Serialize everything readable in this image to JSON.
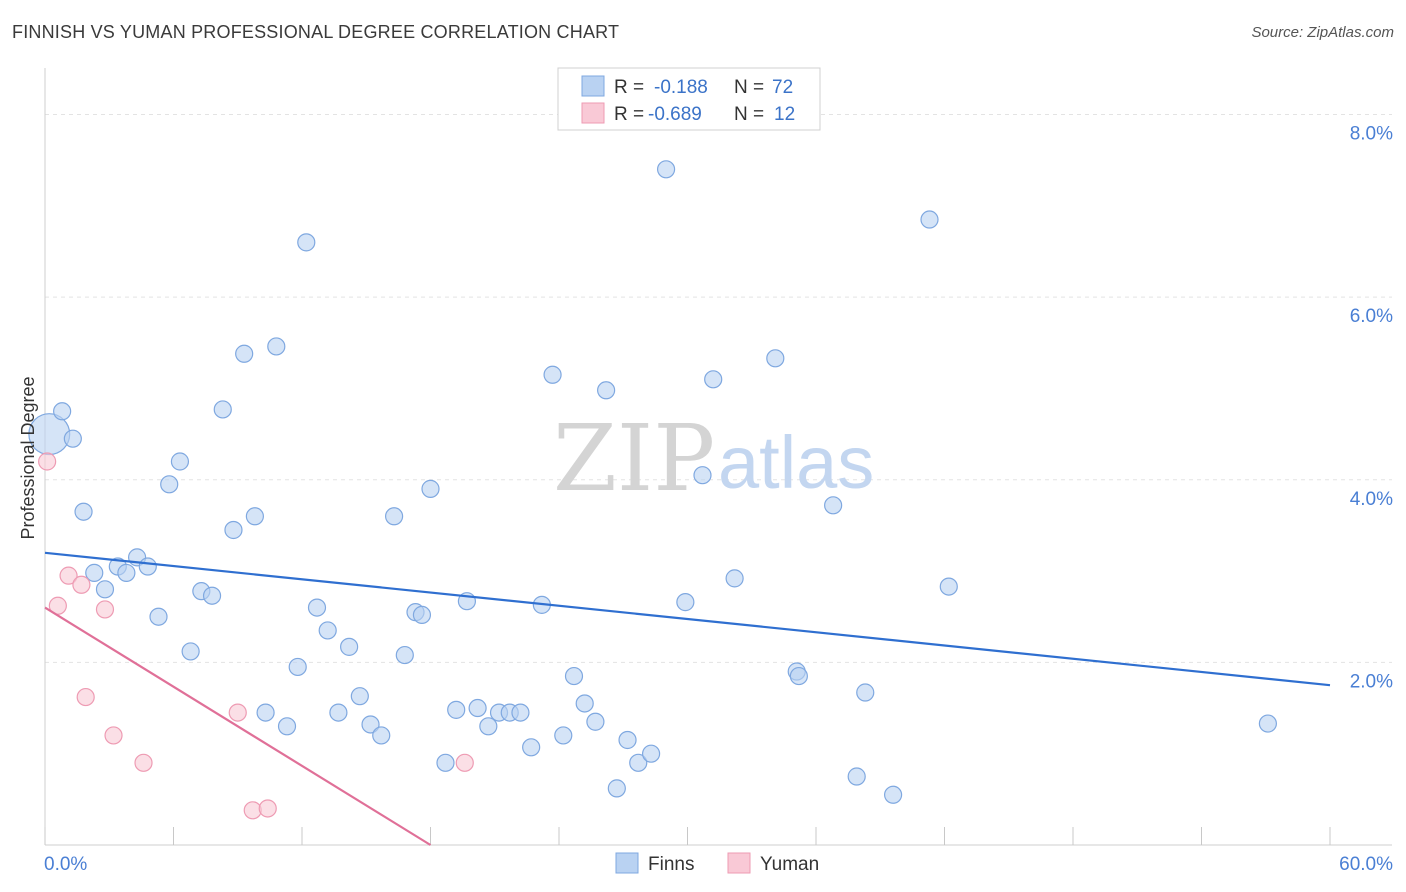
{
  "title": "FINNISH VS YUMAN PROFESSIONAL DEGREE CORRELATION CHART",
  "source": "Source: ZipAtlas.com",
  "watermark": {
    "zip": "ZIP",
    "atlas": "atlas"
  },
  "legend": {
    "r_label": "R =",
    "n_label": "N =",
    "rows": [
      {
        "series": "Finns",
        "r": "-0.188",
        "n": "72"
      },
      {
        "series": "Yuman",
        "r": "-0.689",
        "n": "12"
      }
    ]
  },
  "bottom_legend": [
    "Finns",
    "Yuman"
  ],
  "colors": {
    "finns_fill": "#b9d2f2",
    "finns_stroke": "#7fa8e0",
    "finns_line": "#2f6fd0",
    "yuman_fill": "#f9c9d6",
    "yuman_stroke": "#ee9bb3",
    "yuman_line": "#e07098",
    "tick_text": "#4a7fd4"
  },
  "chart_data": {
    "type": "scatter",
    "title": "FINNISH VS YUMAN PROFESSIONAL DEGREE CORRELATION CHART",
    "xlabel": "",
    "ylabel": "Professional Degree",
    "xlim": [
      0,
      60
    ],
    "ylim": [
      0,
      8.4
    ],
    "x_tick_labels": [
      "0.0%",
      "60.0%"
    ],
    "y_ticks": [
      2,
      4,
      6,
      8
    ],
    "y_tick_labels": [
      "2.0%",
      "4.0%",
      "6.0%",
      "8.0%"
    ],
    "grid": true,
    "series": [
      {
        "name": "Finns",
        "r": -0.188,
        "n": 72,
        "trend": {
          "x0": 0,
          "y0": 3.2,
          "x1": 60,
          "y1": 1.75
        },
        "points": [
          [
            0.2,
            4.5,
            2.4
          ],
          [
            0.8,
            4.75,
            1
          ],
          [
            1.3,
            4.45,
            1
          ],
          [
            1.8,
            3.65,
            1
          ],
          [
            2.3,
            2.98,
            1
          ],
          [
            2.8,
            2.8,
            1
          ],
          [
            3.4,
            3.05,
            1
          ],
          [
            3.8,
            2.98,
            1
          ],
          [
            4.3,
            3.15,
            1
          ],
          [
            4.8,
            3.05,
            1
          ],
          [
            5.3,
            2.5,
            1
          ],
          [
            5.8,
            3.95,
            1
          ],
          [
            6.3,
            4.2,
            1
          ],
          [
            6.8,
            2.12,
            1
          ],
          [
            7.3,
            2.78,
            1
          ],
          [
            7.8,
            2.73,
            1
          ],
          [
            8.3,
            4.77,
            1
          ],
          [
            8.8,
            3.45,
            1
          ],
          [
            9.3,
            5.38,
            1
          ],
          [
            9.8,
            3.6,
            1
          ],
          [
            10.3,
            1.45,
            1
          ],
          [
            10.8,
            5.46,
            1
          ],
          [
            11.3,
            1.3,
            1
          ],
          [
            11.8,
            1.95,
            1
          ],
          [
            12.2,
            6.6,
            1
          ],
          [
            12.7,
            2.6,
            1
          ],
          [
            13.2,
            2.35,
            1
          ],
          [
            13.7,
            1.45,
            1
          ],
          [
            14.2,
            2.17,
            1
          ],
          [
            14.7,
            1.63,
            1
          ],
          [
            15.2,
            1.32,
            1
          ],
          [
            15.7,
            1.2,
            1
          ],
          [
            16.3,
            3.6,
            1
          ],
          [
            16.8,
            2.08,
            1
          ],
          [
            17.3,
            2.55,
            1
          ],
          [
            17.6,
            2.52,
            1
          ],
          [
            18.0,
            3.9,
            1
          ],
          [
            18.7,
            0.9,
            1
          ],
          [
            19.2,
            1.48,
            1
          ],
          [
            19.7,
            2.67,
            1
          ],
          [
            20.2,
            1.5,
            1
          ],
          [
            20.7,
            1.3,
            1
          ],
          [
            21.2,
            1.45,
            1
          ],
          [
            21.7,
            1.45,
            1
          ],
          [
            22.2,
            1.45,
            1
          ],
          [
            22.7,
            1.07,
            1
          ],
          [
            23.2,
            2.63,
            1
          ],
          [
            23.7,
            5.15,
            1
          ],
          [
            24.2,
            1.2,
            1
          ],
          [
            24.7,
            1.85,
            1
          ],
          [
            25.2,
            1.55,
            1
          ],
          [
            25.7,
            1.35,
            1
          ],
          [
            26.2,
            4.98,
            1
          ],
          [
            26.7,
            0.62,
            1
          ],
          [
            27.2,
            1.15,
            1
          ],
          [
            27.7,
            0.9,
            1
          ],
          [
            28.3,
            1.0,
            1
          ],
          [
            29.0,
            7.4,
            1
          ],
          [
            29.9,
            2.66,
            1
          ],
          [
            30.7,
            4.05,
            1
          ],
          [
            31.2,
            5.1,
            1
          ],
          [
            32.2,
            2.92,
            1
          ],
          [
            34.1,
            5.33,
            1
          ],
          [
            35.1,
            1.9,
            1
          ],
          [
            35.2,
            1.85,
            1
          ],
          [
            36.8,
            3.72,
            1
          ],
          [
            37.9,
            0.75,
            1
          ],
          [
            38.3,
            1.67,
            1
          ],
          [
            39.6,
            0.55,
            1
          ],
          [
            41.3,
            6.85,
            1
          ],
          [
            42.2,
            2.83,
            1
          ],
          [
            57.1,
            1.33,
            1
          ]
        ]
      },
      {
        "name": "Yuman",
        "r": -0.689,
        "n": 12,
        "trend": {
          "x0": 0,
          "y0": 2.6,
          "x1": 18.0,
          "y1": 0.0
        },
        "points": [
          [
            0.1,
            4.2,
            1
          ],
          [
            0.6,
            2.62,
            1
          ],
          [
            1.1,
            2.95,
            1
          ],
          [
            1.7,
            2.85,
            1
          ],
          [
            1.9,
            1.62,
            1
          ],
          [
            2.8,
            2.58,
            1
          ],
          [
            3.2,
            1.2,
            1
          ],
          [
            4.6,
            0.9,
            1
          ],
          [
            9.0,
            1.45,
            1
          ],
          [
            9.7,
            0.38,
            1
          ],
          [
            10.4,
            0.4,
            1
          ],
          [
            19.6,
            0.9,
            1
          ]
        ]
      }
    ]
  }
}
